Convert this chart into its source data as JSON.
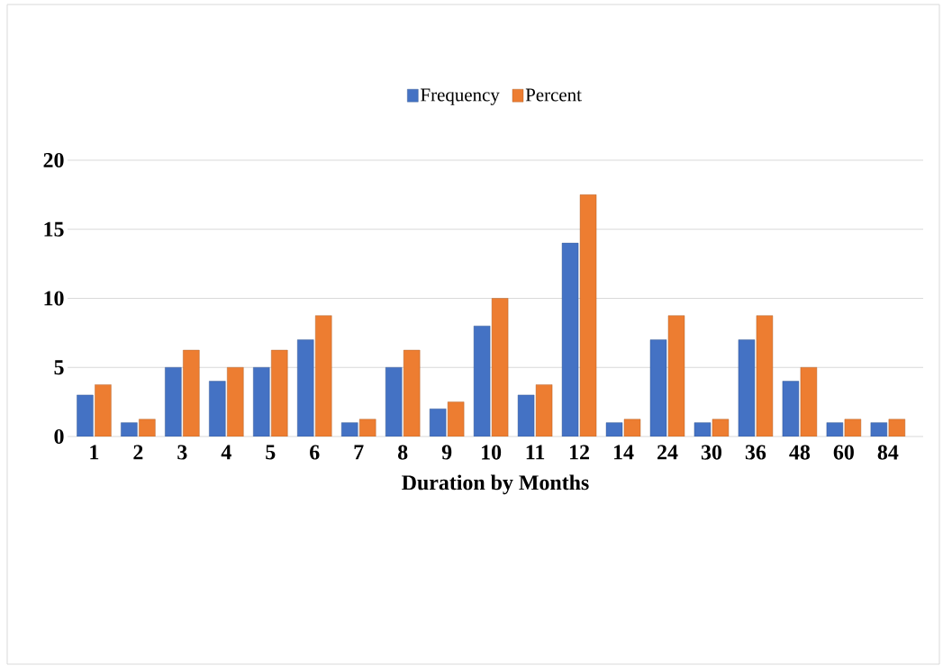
{
  "chart_data": {
    "type": "bar",
    "xlabel": "Duration by Months",
    "categories": [
      "1",
      "2",
      "3",
      "4",
      "5",
      "6",
      "7",
      "8",
      "9",
      "10",
      "11",
      "12",
      "14",
      "24",
      "30",
      "36",
      "48",
      "60",
      "84"
    ],
    "series": [
      {
        "name": "Frequency",
        "color": "#4472c4",
        "values": [
          3,
          1,
          5,
          4,
          5,
          7,
          1,
          5,
          2,
          8,
          3,
          14,
          1,
          7,
          1,
          7,
          4,
          1,
          1
        ]
      },
      {
        "name": "Percent",
        "color": "#ed7d31",
        "values": [
          3.75,
          1.25,
          6.25,
          5,
          6.25,
          8.75,
          1.25,
          6.25,
          2.5,
          10,
          3.75,
          17.5,
          1.25,
          8.75,
          1.25,
          8.75,
          5,
          1.25,
          1.25
        ]
      }
    ],
    "ylim": [
      0,
      20
    ],
    "yticks": [
      0,
      5,
      10,
      15,
      20
    ],
    "grid": "y",
    "legend": "top"
  }
}
